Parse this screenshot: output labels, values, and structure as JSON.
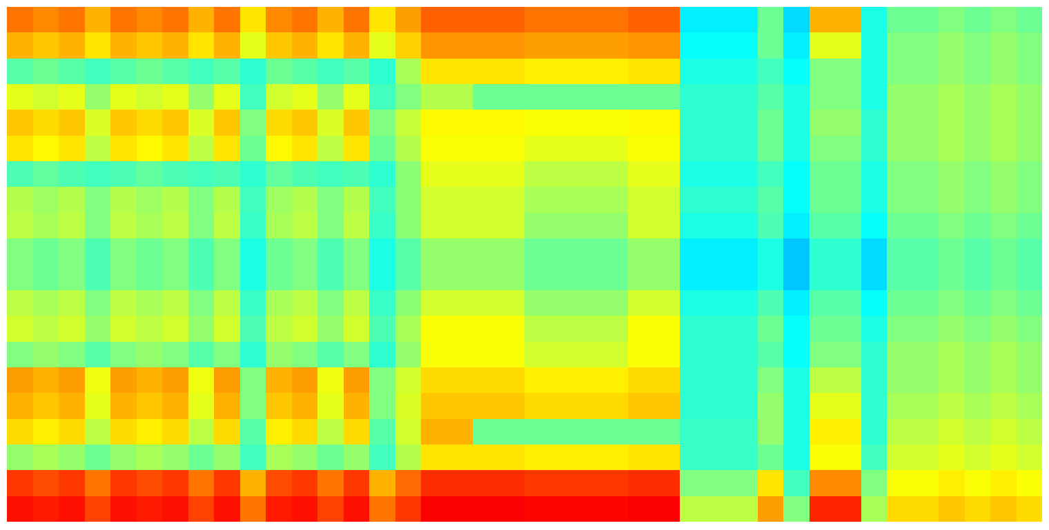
{
  "chart_data": {
    "type": "heatmap",
    "tick_labels": false,
    "zlim": [
      0,
      10
    ],
    "cells": [
      [
        7.6,
        7.0,
        4.6,
        6.0,
        6.8,
        6.5,
        4.5,
        5.5,
        5.6,
        5.0,
        5.0,
        5.6,
        5.8,
        5.0,
        7.2,
        7.0,
        6.6,
        5.2,
        8.2,
        8.6
      ],
      [
        7.4,
        6.8,
        4.8,
        5.8,
        6.6,
        6.3,
        4.7,
        5.3,
        5.4,
        4.8,
        4.8,
        5.4,
        5.6,
        5.2,
        7.0,
        6.8,
        6.4,
        5.4,
        8.0,
        8.5
      ],
      [
        7.6,
        7.0,
        4.6,
        6.0,
        6.8,
        6.5,
        4.5,
        5.5,
        5.6,
        5.0,
        5.0,
        5.6,
        5.8,
        5.0,
        7.2,
        7.0,
        6.6,
        5.2,
        8.2,
        8.6
      ],
      [
        7.0,
        6.5,
        4.4,
        5.2,
        5.9,
        5.6,
        4.4,
        5.0,
        5.0,
        4.5,
        4.5,
        5.0,
        5.2,
        4.6,
        6.1,
        6.0,
        5.6,
        4.8,
        7.6,
        8.1
      ],
      [
        7.6,
        7.0,
        4.6,
        6.0,
        6.8,
        6.5,
        4.5,
        5.5,
        5.6,
        5.0,
        5.0,
        5.6,
        5.8,
        5.0,
        7.2,
        7.0,
        6.6,
        5.2,
        8.2,
        8.6
      ],
      [
        7.4,
        6.8,
        4.8,
        5.8,
        6.6,
        6.3,
        4.7,
        5.3,
        5.4,
        4.8,
        4.8,
        5.4,
        5.6,
        5.2,
        7.0,
        6.8,
        6.4,
        5.4,
        8.0,
        8.5
      ],
      [
        7.6,
        7.0,
        4.6,
        6.0,
        6.8,
        6.5,
        4.5,
        5.5,
        5.6,
        5.0,
        5.0,
        5.6,
        5.8,
        5.0,
        7.2,
        7.0,
        6.6,
        5.2,
        8.2,
        8.6
      ],
      [
        7.0,
        6.5,
        4.4,
        5.2,
        5.9,
        5.6,
        4.4,
        5.0,
        5.0,
        4.5,
        4.5,
        5.0,
        5.2,
        4.6,
        6.1,
        6.0,
        5.6,
        4.8,
        7.6,
        8.1
      ],
      [
        7.6,
        7.0,
        4.6,
        6.0,
        6.8,
        6.5,
        4.5,
        5.5,
        5.6,
        5.0,
        5.0,
        5.6,
        5.8,
        5.0,
        7.2,
        7.0,
        6.6,
        5.2,
        8.2,
        8.6
      ],
      [
        6.5,
        6.0,
        4.2,
        4.4,
        5.0,
        4.8,
        4.2,
        4.4,
        4.3,
        4.0,
        4.0,
        4.3,
        4.5,
        4.2,
        5.0,
        5.0,
        4.6,
        4.4,
        7.0,
        7.6
      ],
      [
        7.4,
        6.8,
        4.8,
        5.8,
        6.6,
        6.3,
        4.7,
        5.3,
        5.4,
        4.8,
        4.8,
        5.4,
        5.6,
        5.2,
        7.0,
        6.8,
        6.4,
        5.4,
        8.0,
        8.5
      ],
      [
        7.6,
        7.0,
        4.6,
        6.0,
        6.8,
        6.5,
        4.5,
        5.5,
        5.6,
        5.0,
        5.0,
        5.6,
        5.8,
        5.0,
        7.2,
        7.0,
        6.6,
        5.2,
        8.2,
        8.6
      ],
      [
        7.0,
        6.5,
        4.4,
        5.2,
        5.9,
        5.6,
        4.4,
        5.0,
        5.0,
        4.5,
        4.5,
        5.0,
        5.2,
        4.6,
        6.1,
        6.0,
        5.6,
        4.8,
        7.6,
        8.1
      ],
      [
        7.6,
        7.0,
        4.6,
        6.0,
        6.8,
        6.5,
        4.5,
        5.5,
        5.6,
        5.0,
        5.0,
        5.6,
        5.8,
        5.0,
        7.2,
        7.0,
        6.6,
        5.2,
        8.2,
        8.6
      ],
      [
        6.5,
        6.0,
        4.2,
        4.4,
        5.0,
        4.8,
        4.2,
        4.4,
        4.3,
        4.0,
        4.0,
        4.3,
        4.5,
        4.2,
        5.0,
        5.0,
        4.6,
        4.4,
        7.0,
        7.6
      ],
      [
        7.2,
        6.7,
        5.4,
        5.0,
        5.7,
        5.5,
        5.1,
        5.1,
        5.1,
        4.6,
        4.6,
        5.1,
        5.4,
        5.2,
        5.8,
        5.9,
        5.8,
        5.5,
        7.7,
        8.2
      ],
      [
        7.8,
        7.3,
        6.5,
        5.5,
        6.3,
        6.2,
        6.0,
        5.8,
        5.8,
        5.2,
        5.2,
        5.8,
        6.2,
        6.2,
        6.6,
        6.8,
        7.0,
        6.5,
        8.3,
        8.8
      ],
      [
        7.8,
        7.3,
        6.5,
        5.5,
        6.3,
        6.2,
        6.0,
        5.8,
        5.8,
        5.2,
        5.2,
        5.8,
        6.2,
        6.2,
        6.6,
        6.8,
        7.0,
        6.5,
        8.3,
        8.8
      ],
      [
        7.8,
        7.3,
        6.5,
        4.8,
        6.3,
        6.2,
        6.0,
        5.8,
        5.8,
        5.2,
        5.2,
        5.8,
        6.2,
        6.2,
        6.6,
        6.8,
        4.8,
        6.5,
        8.3,
        8.8
      ],
      [
        7.8,
        7.3,
        6.5,
        4.8,
        6.3,
        6.2,
        6.0,
        5.8,
        5.8,
        5.2,
        5.2,
        5.8,
        6.2,
        6.2,
        6.6,
        6.8,
        4.8,
        6.5,
        8.3,
        8.8
      ],
      [
        7.6,
        7.2,
        6.4,
        4.8,
        6.2,
        6.0,
        5.6,
        5.4,
        5.2,
        4.8,
        4.8,
        5.2,
        5.6,
        5.8,
        6.4,
        6.6,
        4.8,
        6.4,
        8.2,
        8.7
      ],
      [
        7.6,
        7.2,
        6.4,
        4.8,
        6.2,
        6.0,
        5.6,
        5.4,
        5.2,
        4.8,
        4.8,
        5.2,
        5.6,
        5.8,
        6.4,
        6.6,
        4.8,
        6.4,
        8.2,
        8.7
      ],
      [
        7.6,
        7.2,
        6.4,
        4.8,
        6.2,
        6.0,
        5.6,
        5.4,
        5.2,
        4.8,
        4.8,
        5.2,
        5.6,
        5.8,
        6.4,
        6.6,
        4.8,
        6.4,
        8.2,
        8.7
      ],
      [
        7.6,
        7.2,
        6.4,
        4.8,
        6.2,
        6.0,
        5.6,
        5.4,
        5.2,
        4.8,
        4.8,
        5.2,
        5.6,
        5.8,
        6.4,
        6.6,
        4.8,
        6.4,
        8.2,
        8.7
      ],
      [
        7.8,
        7.3,
        6.5,
        4.8,
        6.3,
        6.2,
        6.0,
        5.8,
        5.8,
        5.2,
        5.2,
        5.8,
        6.2,
        6.2,
        6.6,
        6.8,
        4.8,
        6.5,
        8.3,
        8.8
      ],
      [
        7.8,
        7.3,
        6.5,
        4.8,
        6.3,
        6.2,
        6.0,
        5.8,
        5.8,
        5.2,
        5.2,
        5.8,
        6.2,
        6.2,
        6.6,
        6.8,
        4.8,
        6.5,
        8.3,
        8.8
      ],
      [
        3.6,
        3.8,
        4.0,
        4.2,
        4.2,
        4.2,
        4.0,
        4.2,
        4.0,
        3.6,
        3.6,
        4.0,
        4.2,
        4.2,
        4.2,
        4.2,
        4.3,
        4.3,
        5.0,
        5.6
      ],
      [
        3.6,
        3.8,
        4.0,
        4.2,
        4.2,
        4.2,
        4.0,
        4.2,
        4.0,
        3.6,
        3.6,
        4.0,
        4.2,
        4.2,
        4.2,
        4.2,
        4.3,
        4.3,
        5.0,
        5.6
      ],
      [
        3.6,
        3.8,
        4.0,
        4.2,
        4.2,
        4.2,
        4.0,
        4.2,
        4.0,
        3.6,
        3.6,
        4.0,
        4.2,
        4.2,
        4.2,
        4.2,
        4.3,
        4.3,
        5.0,
        5.6
      ],
      [
        4.8,
        4.8,
        4.4,
        4.6,
        4.8,
        4.8,
        4.4,
        4.6,
        4.5,
        4.0,
        4.0,
        4.5,
        4.8,
        4.6,
        5.0,
        5.2,
        5.2,
        4.8,
        6.5,
        7.2
      ],
      [
        3.4,
        3.6,
        3.8,
        4.0,
        4.0,
        4.0,
        3.8,
        3.8,
        3.6,
        3.2,
        3.2,
        3.6,
        3.8,
        3.8,
        4.0,
        4.0,
        4.0,
        4.0,
        4.4,
        5.0
      ],
      [
        7.0,
        6.0,
        5.0,
        5.0,
        5.2,
        5.0,
        4.8,
        4.8,
        4.6,
        4.2,
        4.2,
        4.6,
        4.8,
        5.0,
        5.6,
        6.0,
        6.4,
        6.2,
        7.4,
        8.4
      ],
      [
        7.0,
        6.0,
        5.0,
        5.0,
        5.2,
        5.0,
        4.8,
        4.8,
        4.6,
        4.2,
        4.2,
        4.6,
        4.8,
        5.0,
        5.6,
        6.0,
        6.4,
        6.2,
        7.4,
        8.4
      ],
      [
        4.0,
        4.0,
        4.0,
        4.0,
        4.2,
        4.2,
        4.0,
        4.0,
        3.8,
        3.4,
        3.4,
        3.8,
        4.0,
        4.2,
        4.2,
        4.2,
        4.2,
        4.4,
        5.0,
        5.4
      ],
      [
        4.8,
        5.0,
        5.0,
        5.2,
        5.2,
        5.2,
        5.0,
        5.0,
        4.8,
        4.6,
        4.6,
        4.8,
        5.0,
        5.2,
        5.2,
        5.4,
        5.6,
        5.8,
        6.2,
        6.6
      ],
      [
        4.8,
        5.0,
        5.0,
        5.2,
        5.2,
        5.2,
        5.0,
        5.0,
        4.8,
        4.6,
        4.6,
        4.8,
        5.0,
        5.2,
        5.2,
        5.4,
        5.6,
        5.8,
        6.2,
        6.6
      ],
      [
        5.0,
        5.2,
        5.2,
        5.4,
        5.4,
        5.4,
        5.2,
        5.2,
        5.0,
        4.8,
        4.8,
        5.0,
        5.2,
        5.4,
        5.4,
        5.6,
        5.8,
        6.0,
        6.4,
        6.8
      ],
      [
        4.8,
        5.0,
        5.0,
        5.2,
        5.2,
        5.2,
        5.0,
        5.0,
        4.8,
        4.6,
        4.6,
        4.8,
        5.0,
        5.2,
        5.2,
        5.4,
        5.6,
        5.8,
        6.2,
        6.6
      ],
      [
        5.0,
        5.2,
        5.2,
        5.4,
        5.4,
        5.4,
        5.2,
        5.2,
        5.0,
        4.8,
        4.8,
        5.0,
        5.2,
        5.4,
        5.4,
        5.6,
        5.8,
        6.0,
        6.4,
        6.8
      ],
      [
        4.8,
        5.0,
        5.0,
        5.2,
        5.2,
        5.2,
        5.0,
        5.0,
        4.8,
        4.6,
        4.6,
        4.8,
        5.0,
        5.2,
        5.2,
        5.4,
        5.6,
        5.8,
        6.2,
        6.6
      ]
    ]
  }
}
